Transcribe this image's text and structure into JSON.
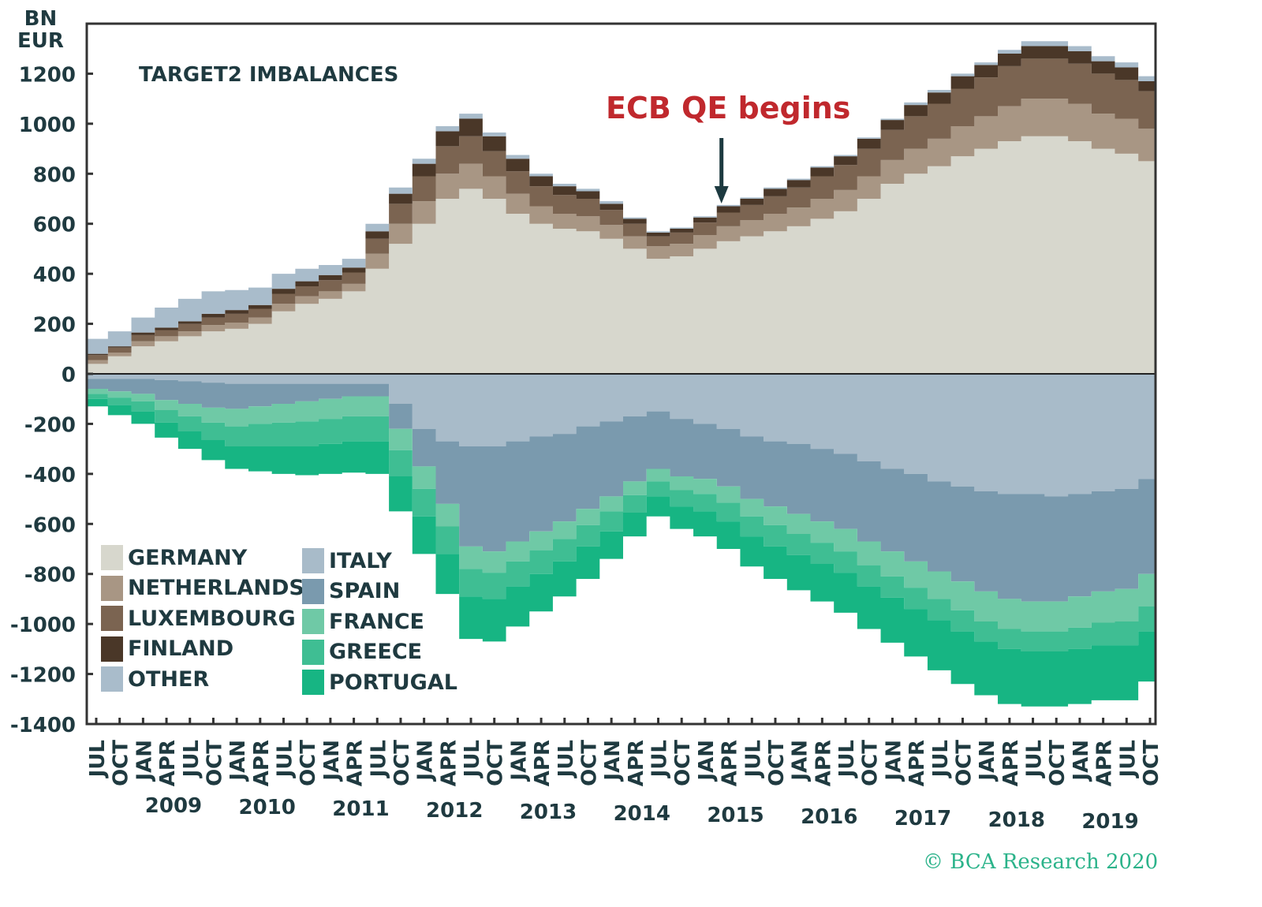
{
  "chart_data": {
    "type": "area",
    "stacked": true,
    "step": true,
    "title": "TARGET2 IMBALANCES",
    "ylabel": "BN EUR",
    "xlabel": "",
    "ylim": [
      -1400,
      1400
    ],
    "yticks": [
      1200,
      1000,
      800,
      600,
      400,
      200,
      0,
      -200,
      -400,
      -600,
      -800,
      -1000,
      -1200,
      -1400
    ],
    "x": [
      "Jul 2008",
      "Oct 2008",
      "Jan 2009",
      "Apr 2009",
      "Jul 2009",
      "Oct 2009",
      "Jan 2010",
      "Apr 2010",
      "Jul 2010",
      "Oct 2010",
      "Jan 2011",
      "Apr 2011",
      "Jul 2011",
      "Oct 2011",
      "Jan 2012",
      "Apr 2012",
      "Jul 2012",
      "Oct 2012",
      "Jan 2013",
      "Apr 2013",
      "Jul 2013",
      "Oct 2013",
      "Jan 2014",
      "Apr 2014",
      "Jul 2014",
      "Oct 2014",
      "Jan 2015",
      "Apr 2015",
      "Jul 2015",
      "Oct 2015",
      "Jan 2016",
      "Apr 2016",
      "Jul 2016",
      "Oct 2016",
      "Jan 2017",
      "Apr 2017",
      "Jul 2017",
      "Oct 2017",
      "Jan 2018",
      "Apr 2018",
      "Jul 2018",
      "Oct 2018",
      "Jan 2019",
      "Apr 2019",
      "Jul 2019",
      "Oct 2019"
    ],
    "xtick_labels": [
      "JUL",
      "OCT",
      "JAN",
      "APR",
      "JUL",
      "OCT",
      "JAN",
      "APR",
      "JUL",
      "OCT",
      "JAN",
      "APR",
      "JUL",
      "OCT",
      "JAN",
      "APR",
      "JUL",
      "OCT",
      "JAN",
      "APR",
      "JUL",
      "OCT",
      "JAN",
      "APR",
      "JUL",
      "OCT",
      "JAN",
      "APR",
      "JUL",
      "OCT",
      "JAN",
      "APR",
      "JUL",
      "OCT",
      "JAN",
      "APR",
      "JUL",
      "OCT",
      "JAN",
      "APR",
      "JUL",
      "OCT",
      "JAN",
      "APR",
      "JUL",
      "OCT"
    ],
    "year_labels": [
      "2009",
      "2010",
      "2011",
      "2012",
      "2013",
      "2014",
      "2015",
      "2016",
      "2017",
      "2018",
      "2019"
    ],
    "positive_series": [
      {
        "name": "GERMANY",
        "color": "#d7d7cd",
        "values": [
          40,
          70,
          110,
          130,
          150,
          170,
          180,
          200,
          250,
          280,
          300,
          330,
          420,
          520,
          600,
          700,
          740,
          700,
          640,
          600,
          580,
          570,
          540,
          500,
          460,
          470,
          500,
          530,
          550,
          570,
          590,
          620,
          650,
          700,
          760,
          800,
          830,
          870,
          900,
          930,
          950,
          950,
          930,
          900,
          880,
          850
        ]
      },
      {
        "name": "NETHERLANDS",
        "color": "#a89684",
        "values": [
          15,
          15,
          20,
          20,
          20,
          25,
          25,
          25,
          30,
          30,
          30,
          30,
          60,
          80,
          90,
          100,
          100,
          90,
          80,
          70,
          60,
          60,
          55,
          50,
          50,
          50,
          55,
          60,
          65,
          70,
          75,
          80,
          85,
          90,
          95,
          100,
          110,
          120,
          130,
          140,
          150,
          150,
          150,
          140,
          140,
          130
        ]
      },
      {
        "name": "LUXEMBOURG",
        "color": "#7b6451",
        "values": [
          20,
          20,
          25,
          25,
          30,
          30,
          35,
          35,
          40,
          40,
          45,
          45,
          60,
          80,
          100,
          110,
          110,
          100,
          90,
          80,
          75,
          70,
          60,
          50,
          40,
          45,
          50,
          55,
          60,
          70,
          80,
          90,
          100,
          110,
          120,
          130,
          140,
          150,
          155,
          160,
          160,
          160,
          160,
          160,
          155,
          150
        ]
      },
      {
        "name": "FINLAND",
        "color": "#4a3728",
        "values": [
          5,
          5,
          10,
          10,
          10,
          15,
          15,
          15,
          20,
          20,
          20,
          20,
          30,
          40,
          50,
          60,
          70,
          60,
          50,
          40,
          35,
          30,
          25,
          20,
          15,
          15,
          20,
          25,
          25,
          30,
          30,
          35,
          35,
          40,
          40,
          45,
          45,
          50,
          50,
          50,
          50,
          50,
          50,
          50,
          50,
          40
        ]
      },
      {
        "name": "OTHER",
        "color": "#a9bccb",
        "values": [
          60,
          60,
          60,
          80,
          90,
          90,
          80,
          70,
          60,
          50,
          40,
          35,
          30,
          25,
          20,
          20,
          20,
          15,
          15,
          10,
          10,
          10,
          10,
          5,
          5,
          5,
          5,
          5,
          5,
          5,
          5,
          5,
          5,
          5,
          5,
          10,
          10,
          10,
          10,
          15,
          20,
          20,
          20,
          20,
          20,
          20
        ]
      }
    ],
    "negative_series": [
      {
        "name": "ITALY",
        "color": "#a8bbc9",
        "values": [
          -20,
          -20,
          -20,
          -25,
          -30,
          -35,
          -40,
          -40,
          -40,
          -40,
          -40,
          -40,
          -40,
          -120,
          -220,
          -270,
          -290,
          -290,
          -270,
          -250,
          -240,
          -210,
          -190,
          -170,
          -150,
          -180,
          -200,
          -220,
          -250,
          -270,
          -280,
          -300,
          -320,
          -350,
          -380,
          -400,
          -430,
          -450,
          -470,
          -480,
          -480,
          -490,
          -480,
          -470,
          -460,
          -420
        ]
      },
      {
        "name": "SPAIN",
        "color": "#7a9aae",
        "values": [
          -40,
          -50,
          -60,
          -80,
          -90,
          -100,
          -100,
          -90,
          -80,
          -70,
          -60,
          -50,
          -50,
          -100,
          -150,
          -250,
          -400,
          -420,
          -400,
          -380,
          -350,
          -330,
          -300,
          -260,
          -230,
          -230,
          -220,
          -230,
          -250,
          -260,
          -280,
          -290,
          -300,
          -320,
          -330,
          -350,
          -360,
          -380,
          -400,
          -420,
          -430,
          -420,
          -410,
          -400,
          -400,
          -380
        ]
      },
      {
        "name": "FRANCE",
        "color": "#6fc9a6",
        "values": [
          -20,
          -25,
          -30,
          -40,
          -50,
          -60,
          -70,
          -70,
          -75,
          -80,
          -80,
          -80,
          -80,
          -85,
          -90,
          -90,
          -90,
          -85,
          -80,
          -75,
          -70,
          -65,
          -60,
          -55,
          -50,
          -55,
          -60,
          -65,
          -70,
          -75,
          -80,
          -85,
          -90,
          -95,
          -100,
          -105,
          -110,
          -115,
          -120,
          -120,
          -120,
          -120,
          -125,
          -125,
          -130,
          -130
        ]
      },
      {
        "name": "GREECE",
        "color": "#3fbe93",
        "values": [
          -20,
          -30,
          -40,
          -50,
          -60,
          -70,
          -80,
          -90,
          -95,
          -100,
          -100,
          -100,
          -100,
          -105,
          -110,
          -110,
          -110,
          -105,
          -100,
          -95,
          -90,
          -85,
          -80,
          -70,
          -60,
          -65,
          -70,
          -75,
          -80,
          -85,
          -85,
          -85,
          -85,
          -85,
          -85,
          -85,
          -85,
          -85,
          -80,
          -80,
          -80,
          -80,
          -85,
          -90,
          -95,
          -100
        ]
      },
      {
        "name": "PORTUGAL",
        "color": "#17b583",
        "values": [
          -30,
          -40,
          -50,
          -60,
          -70,
          -80,
          -90,
          -100,
          -110,
          -115,
          -120,
          -125,
          -130,
          -140,
          -150,
          -160,
          -170,
          -170,
          -160,
          -150,
          -140,
          -130,
          -110,
          -95,
          -80,
          -90,
          -100,
          -110,
          -120,
          -130,
          -140,
          -150,
          -160,
          -170,
          -180,
          -190,
          -200,
          -210,
          -215,
          -220,
          -220,
          -220,
          -220,
          -220,
          -220,
          -200
        ]
      }
    ],
    "legend": {
      "placement": "bottom-left",
      "left_column": [
        "GERMANY",
        "NETHERLANDS",
        "LUXEMBOURG",
        "FINLAND",
        "OTHER"
      ],
      "right_column": [
        "ITALY",
        "SPAIN",
        "FRANCE",
        "GREECE",
        "PORTUGAL"
      ]
    },
    "annotation": {
      "text": "ECB QE begins",
      "at": "Jan 2015",
      "color": "#c0282d"
    },
    "grid": false
  },
  "unit_line1": "BN",
  "unit_line2": "EUR",
  "copyright": "© BCA Research 2020"
}
